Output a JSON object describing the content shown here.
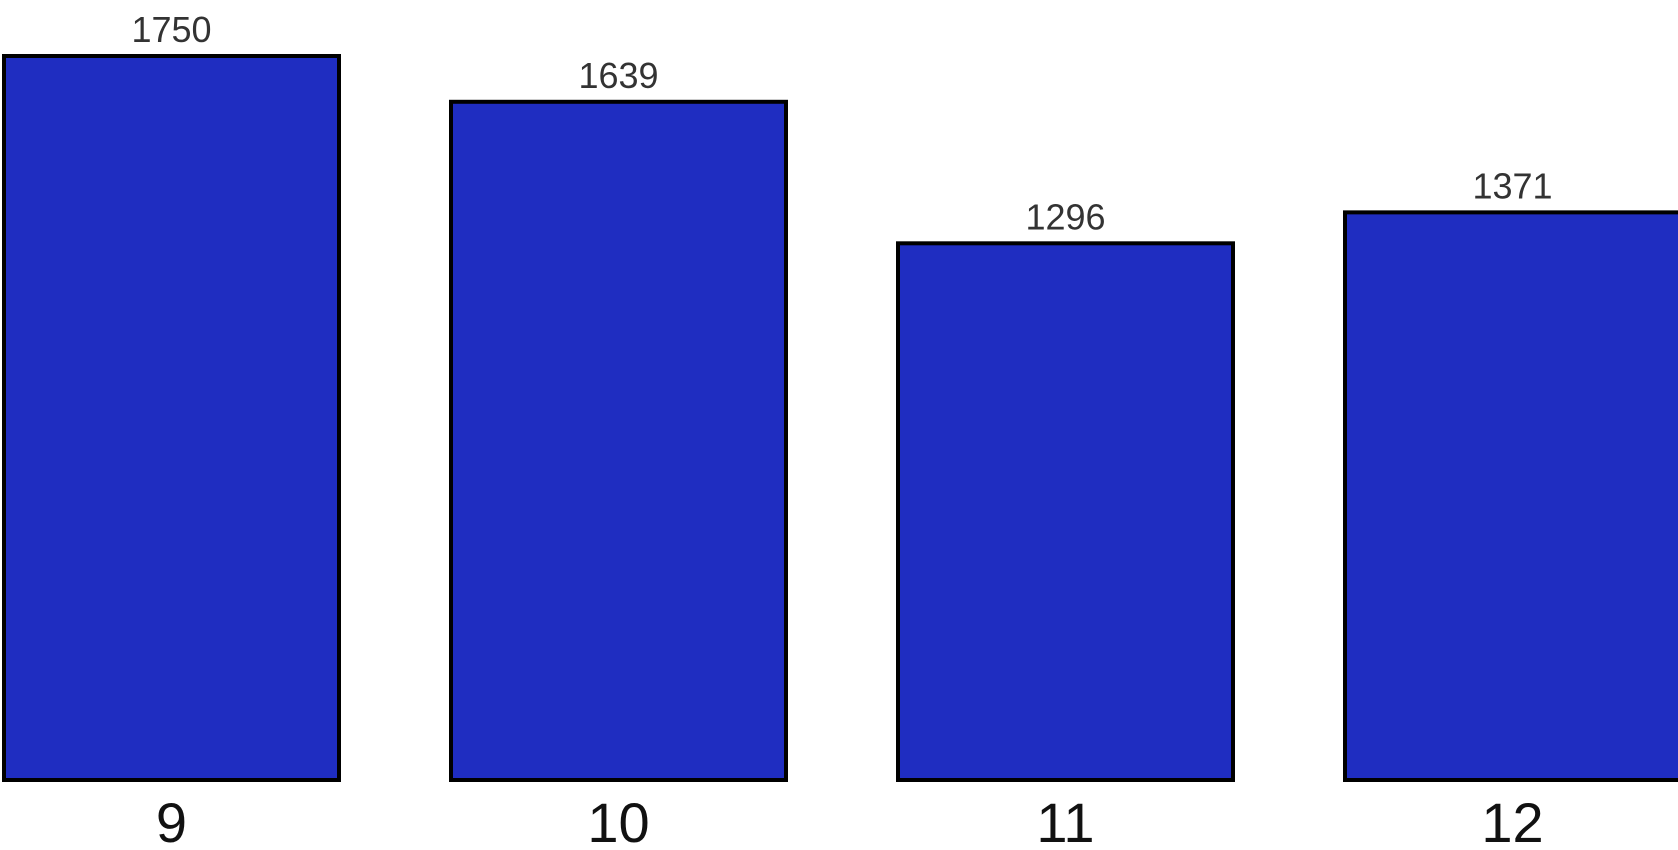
{
  "chart_data": {
    "type": "bar",
    "categories": [
      "9",
      "10",
      "11",
      "12"
    ],
    "values": [
      1750,
      1639,
      1296,
      1371
    ],
    "data_labels": [
      "1750",
      "1639",
      "1296",
      "1371"
    ],
    "title": "",
    "xlabel": "",
    "ylabel": "",
    "ylim": [
      0,
      1750
    ],
    "grid": false,
    "legend": "none",
    "colors": {
      "bar_fill": "#1f2dc1",
      "bar_stroke": "#000000",
      "value_label": "#333333",
      "category_label": "#111111"
    }
  }
}
